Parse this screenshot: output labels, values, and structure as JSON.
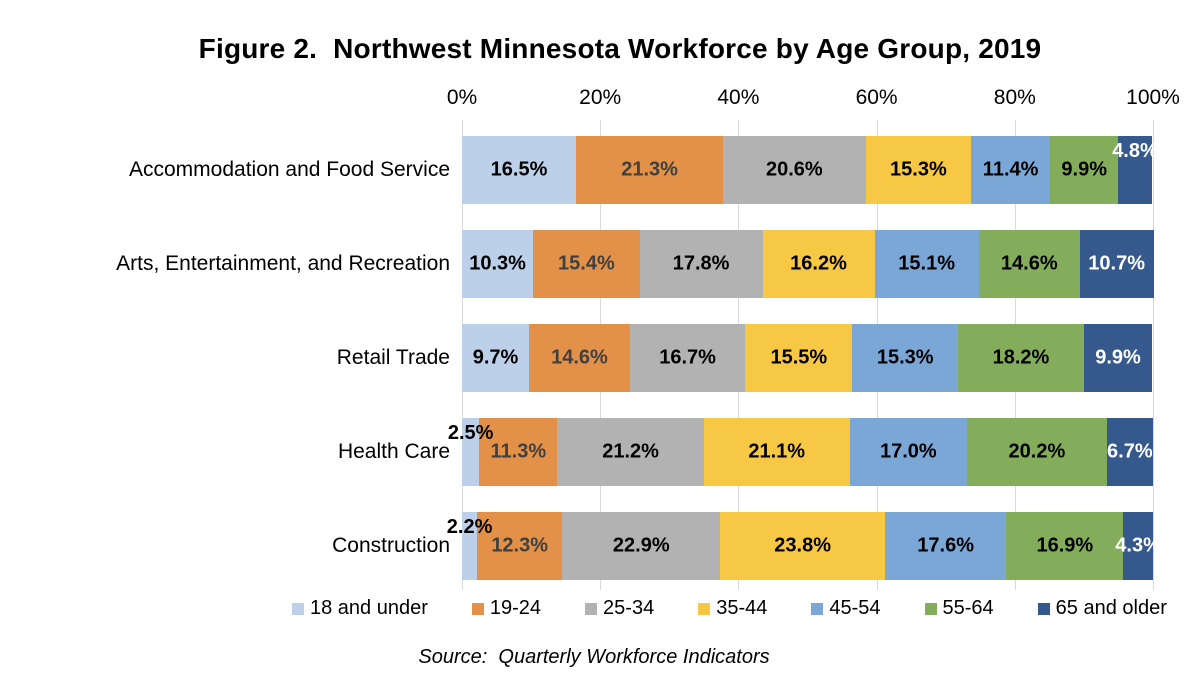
{
  "title": "Figure 2.  Northwest Minnesota Workforce by Age Group, 2019",
  "source": "Source:  Quarterly Workforce Indicators",
  "axis": {
    "ticks": [
      "0%",
      "20%",
      "40%",
      "60%",
      "80%",
      "100%"
    ],
    "grid_color": "#d9d9d9"
  },
  "chart_data": {
    "type": "bar",
    "stacked": true,
    "orientation": "horizontal",
    "title": "Figure 2.  Northwest Minnesota Workforce by Age Group, 2019",
    "xlabel": "",
    "ylabel": "",
    "xlim": [
      0,
      100
    ],
    "grid": true,
    "legend_position": "bottom",
    "categories": [
      "Accommodation and Food Service",
      "Arts, Entertainment, and Recreation",
      "Retail Trade",
      "Health Care",
      "Construction"
    ],
    "series": [
      {
        "name": "18 and under",
        "color": "#bdd0e9",
        "label_color": "#000000",
        "values": [
          16.5,
          10.3,
          9.7,
          2.5,
          2.2
        ]
      },
      {
        "name": "19-24",
        "color": "#e39148",
        "label_color": "#404040",
        "values": [
          21.3,
          15.4,
          14.6,
          11.3,
          12.3
        ]
      },
      {
        "name": "25-34",
        "color": "#b2b2b2",
        "label_color": "#000000",
        "values": [
          20.6,
          17.8,
          16.7,
          21.2,
          22.9
        ]
      },
      {
        "name": "35-44",
        "color": "#f7c844",
        "label_color": "#000000",
        "values": [
          15.3,
          16.2,
          15.5,
          21.1,
          23.8
        ]
      },
      {
        "name": "45-54",
        "color": "#7ba7d7",
        "label_color": "#000000",
        "values": [
          11.4,
          15.1,
          15.3,
          17.0,
          17.6
        ]
      },
      {
        "name": "55-64",
        "color": "#83ad5b",
        "label_color": "#000000",
        "values": [
          9.9,
          14.6,
          18.2,
          20.2,
          16.9
        ]
      },
      {
        "name": "65 and older",
        "color": "#35598c",
        "label_color": "#ffffff",
        "values": [
          4.8,
          10.7,
          9.9,
          6.7,
          4.3
        ]
      }
    ],
    "label_overrides": [
      {
        "row": 0,
        "series": 6,
        "pos": "top"
      },
      {
        "row": 3,
        "series": 0,
        "pos": "top"
      },
      {
        "row": 4,
        "series": 0,
        "pos": "top"
      }
    ]
  }
}
